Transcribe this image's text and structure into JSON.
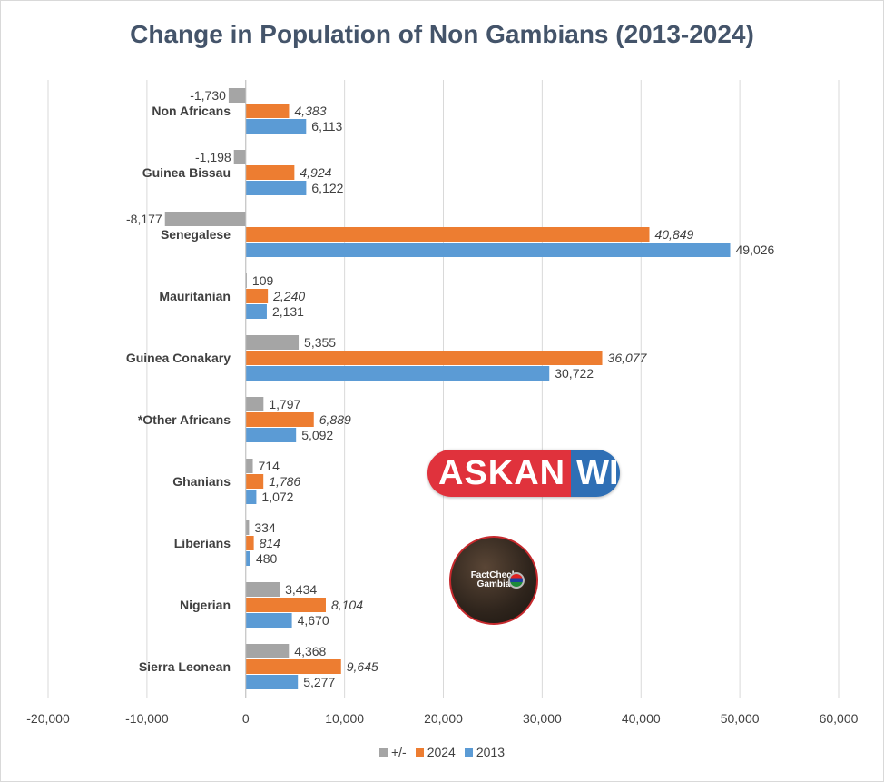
{
  "chart_data": {
    "type": "bar",
    "orientation": "horizontal",
    "title": "Change in Population of Non Gambians (2013-2024)",
    "categories": [
      "Non Africans",
      "Guinea Bissau",
      "Senegalese",
      "Mauritanian",
      "Guinea Conakary",
      "*Other Africans",
      "Ghanians",
      "Liberians",
      "Nigerian",
      "Sierra Leonean"
    ],
    "series": [
      {
        "name": "+/-",
        "color": "#a5a5a5",
        "values": [
          -1730,
          -1198,
          -8177,
          109,
          5355,
          1797,
          714,
          334,
          3434,
          4368
        ],
        "labels": [
          "-1,730",
          "-1,198",
          "-8,177",
          "109",
          "5,355",
          "1,797",
          "714",
          "334",
          "3,434",
          "4,368"
        ]
      },
      {
        "name": "2024",
        "color": "#ed7d31",
        "values": [
          4383,
          4924,
          40849,
          2240,
          36077,
          6889,
          1786,
          814,
          8104,
          9645
        ],
        "labels": [
          "4,383",
          "4,924",
          "40,849",
          "2,240",
          "36,077",
          "6,889",
          "1,786",
          "814",
          "8,104",
          "9,645"
        ]
      },
      {
        "name": "2013",
        "color": "#5b9bd5",
        "values": [
          6113,
          6122,
          49026,
          2131,
          30722,
          5092,
          1072,
          480,
          4670,
          5277
        ],
        "labels": [
          "6,113",
          "6,122",
          "49,026",
          "2,131",
          "30,722",
          "5,092",
          "1,072",
          "480",
          "4,670",
          "5,277"
        ]
      }
    ],
    "xlim": [
      -20000,
      60000
    ],
    "xticks": [
      -20000,
      -10000,
      0,
      10000,
      20000,
      30000,
      40000,
      50000,
      60000
    ],
    "xtick_labels": [
      "-20,000",
      "-10,000",
      "0",
      "10,000",
      "20,000",
      "30,000",
      "40,000",
      "50,000",
      "60,000"
    ],
    "grid": true,
    "legend_position": "bottom",
    "legend_order": [
      "+/-",
      "2024",
      "2013"
    ]
  },
  "watermarks": {
    "askanwi_left": "ASKAN",
    "askanwi_right": "WI",
    "factcheck_line1": "FactCheck",
    "factcheck_line2": "Gambia"
  }
}
